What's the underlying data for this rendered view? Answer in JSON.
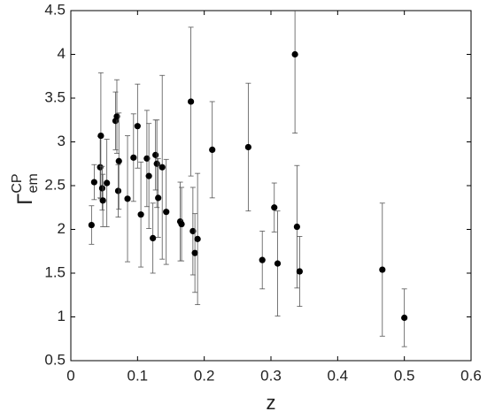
{
  "chart_data": {
    "type": "scatter",
    "xlabel": "z",
    "ylabel": {
      "base": "Γ",
      "sub": "em",
      "sup": "CP"
    },
    "xlim": [
      0,
      0.6
    ],
    "ylim": [
      0.5,
      4.5
    ],
    "xticks": [
      0,
      0.1,
      0.2,
      0.3,
      0.4,
      0.5,
      0.6
    ],
    "yticks": [
      0.5,
      1,
      1.5,
      2,
      2.5,
      3,
      3.5,
      4,
      4.5
    ],
    "color": "#000000",
    "series": [
      {
        "x": [
          0.031,
          0.035,
          0.044,
          0.045,
          0.047,
          0.048,
          0.054,
          0.067,
          0.069,
          0.071,
          0.072,
          0.085,
          0.094,
          0.1,
          0.105,
          0.114,
          0.117,
          0.123,
          0.127,
          0.129,
          0.131,
          0.137,
          0.143,
          0.164,
          0.166,
          0.18,
          0.183,
          0.186,
          0.19,
          0.212,
          0.266,
          0.287,
          0.305,
          0.31,
          0.336,
          0.339,
          0.343,
          0.467,
          0.5
        ],
        "values": [
          2.05,
          2.54,
          2.71,
          3.07,
          2.47,
          2.33,
          2.53,
          3.24,
          3.29,
          2.44,
          2.78,
          2.35,
          2.82,
          3.18,
          2.17,
          2.81,
          2.61,
          1.9,
          2.85,
          2.75,
          2.36,
          2.71,
          2.2,
          2.09,
          2.06,
          3.46,
          1.98,
          1.73,
          1.89,
          2.91,
          2.94,
          1.65,
          2.25,
          1.61,
          4.0,
          2.03,
          1.52,
          1.54,
          0.99
        ],
        "errors": [
          0.22,
          0.2,
          0.35,
          0.72,
          0.25,
          0.3,
          0.5,
          0.33,
          0.42,
          0.3,
          0.55,
          0.72,
          0.5,
          0.48,
          0.6,
          0.55,
          0.6,
          0.4,
          0.4,
          0.5,
          0.45,
          1.05,
          0.6,
          0.45,
          0.42,
          0.85,
          0.5,
          0.45,
          0.75,
          0.55,
          0.73,
          0.33,
          0.28,
          0.6,
          0.9,
          0.7,
          0.4,
          0.76,
          0.33
        ]
      }
    ]
  }
}
